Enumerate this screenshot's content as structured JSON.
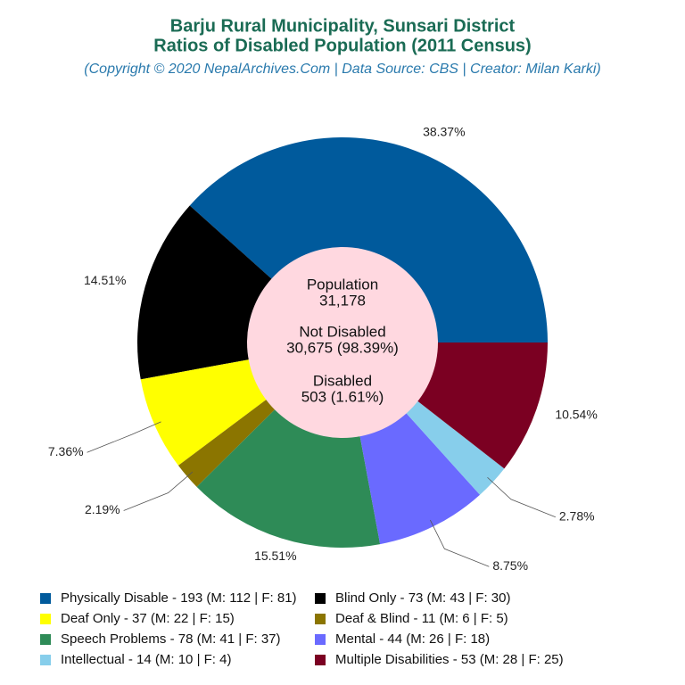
{
  "chart_data": {
    "type": "pie",
    "title": [
      "Barju Rural Municipality, Sunsari District",
      "Ratios of Disabled Population (2011 Census)"
    ],
    "subtitle": "(Copyright © 2020 NepalArchives.Com | Data Source: CBS | Creator: Milan Karki)",
    "center_labels": [
      "Population",
      "31,178",
      "Not Disabled",
      "30,675 (98.39%)",
      "Disabled",
      "503 (1.61%)"
    ],
    "categories": [
      "Physically Disable - 193 (M: 112 | F: 81)",
      "Blind Only - 73 (M: 43 | F: 30)",
      "Deaf Only - 37 (M: 22 | F: 15)",
      "Deaf & Blind - 11 (M: 6 | F: 5)",
      "Speech Problems - 78 (M: 41 | F: 37)",
      "Mental - 44 (M: 26 | F: 18)",
      "Intellectual - 14 (M: 10 | F: 4)",
      "Multiple Disabilities - 53 (M: 28 | F: 25)"
    ],
    "values": [
      38.37,
      14.51,
      7.36,
      2.19,
      15.51,
      8.75,
      2.78,
      10.54
    ],
    "value_labels": [
      "38.37%",
      "14.51%",
      "7.36%",
      "2.19%",
      "15.51%",
      "8.75%",
      "2.78%",
      "10.54%"
    ],
    "colors": [
      "#005a9c",
      "#000000",
      "#ffff00",
      "#8b7500",
      "#2e8b57",
      "#6a6aff",
      "#87ceeb",
      "#7b0022"
    ]
  }
}
